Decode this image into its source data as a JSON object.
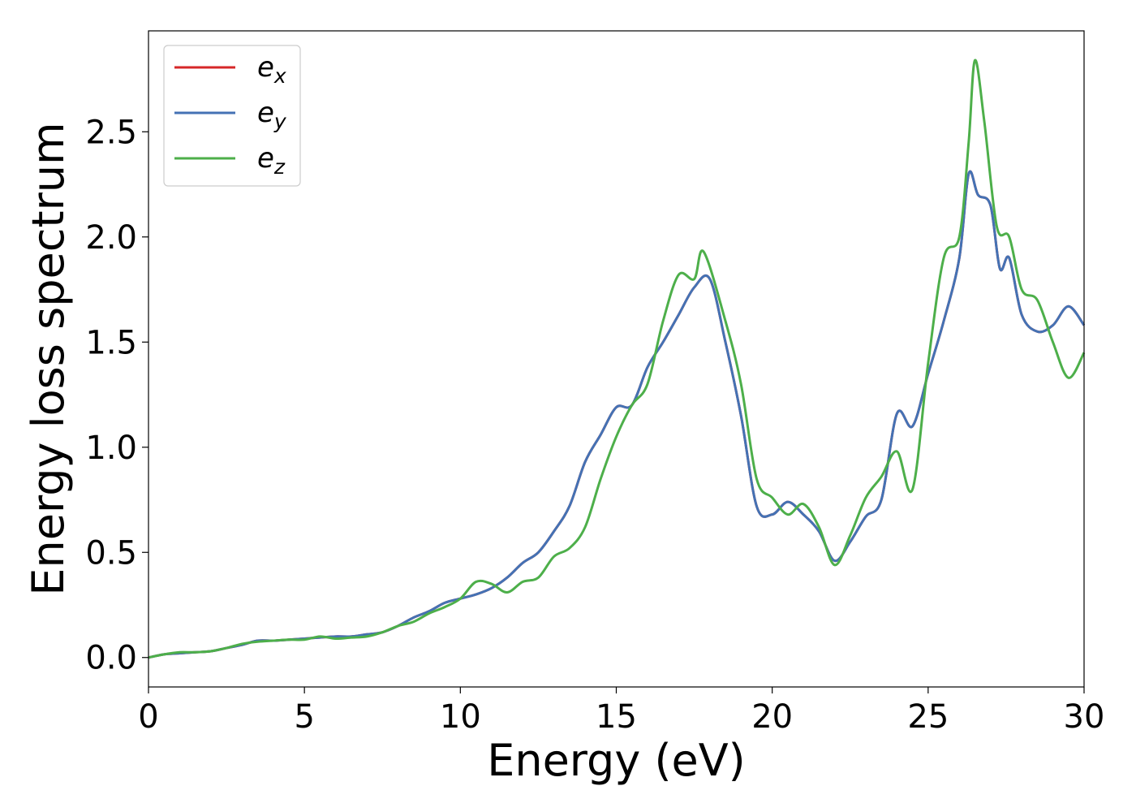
{
  "chart_data": {
    "type": "line",
    "title": "",
    "xlabel": "Energy (eV)",
    "ylabel": "Energy loss spectrum",
    "xlim": [
      0,
      30
    ],
    "ylim": [
      -0.14,
      2.98
    ],
    "xticks": [
      0,
      5,
      10,
      15,
      20,
      25,
      30
    ],
    "yticks": [
      0.0,
      0.5,
      1.0,
      1.5,
      2.0,
      2.5
    ],
    "xtick_labels": [
      "0",
      "5",
      "10",
      "15",
      "20",
      "25",
      "30"
    ],
    "ytick_labels": [
      "0.0",
      "0.5",
      "1.0",
      "1.5",
      "2.0",
      "2.5"
    ],
    "grid": false,
    "legend": "top-left",
    "series": [
      {
        "name": "e_x",
        "legend_base": "e",
        "legend_sub": "x",
        "color": "#d62728",
        "x": [
          0,
          0.5,
          1,
          1.5,
          2,
          2.5,
          3,
          3.5,
          4,
          4.5,
          5,
          5.5,
          6,
          6.5,
          7,
          7.5,
          8,
          8.5,
          9,
          9.5,
          10,
          10.5,
          11,
          11.5,
          12,
          12.5,
          13,
          13.5,
          14,
          14.5,
          15,
          15.5,
          16,
          16.5,
          17,
          17.5,
          18,
          18.5,
          19,
          19.5,
          20,
          20.5,
          21,
          21.5,
          22,
          22.5,
          23,
          23.5,
          24,
          24.5,
          25,
          25.5,
          26,
          26.3,
          26.6,
          27,
          27.3,
          27.6,
          28,
          28.5,
          29,
          29.5,
          30
        ],
        "y": [
          0.0,
          0.015,
          0.02,
          0.025,
          0.03,
          0.045,
          0.06,
          0.08,
          0.08,
          0.085,
          0.09,
          0.095,
          0.1,
          0.1,
          0.11,
          0.12,
          0.15,
          0.19,
          0.22,
          0.26,
          0.28,
          0.3,
          0.33,
          0.38,
          0.45,
          0.5,
          0.6,
          0.72,
          0.93,
          1.06,
          1.19,
          1.2,
          1.38,
          1.5,
          1.63,
          1.76,
          1.8,
          1.5,
          1.15,
          0.72,
          0.68,
          0.74,
          0.68,
          0.6,
          0.46,
          0.55,
          0.67,
          0.75,
          1.16,
          1.1,
          1.35,
          1.6,
          1.9,
          2.3,
          2.2,
          2.15,
          1.85,
          1.9,
          1.63,
          1.55,
          1.58,
          1.67,
          1.58
        ]
      },
      {
        "name": "e_y",
        "legend_base": "e",
        "legend_sub": "y",
        "color": "#4472b4",
        "x": [
          0,
          0.5,
          1,
          1.5,
          2,
          2.5,
          3,
          3.5,
          4,
          4.5,
          5,
          5.5,
          6,
          6.5,
          7,
          7.5,
          8,
          8.5,
          9,
          9.5,
          10,
          10.5,
          11,
          11.5,
          12,
          12.5,
          13,
          13.5,
          14,
          14.5,
          15,
          15.5,
          16,
          16.5,
          17,
          17.5,
          18,
          18.5,
          19,
          19.5,
          20,
          20.5,
          21,
          21.5,
          22,
          22.5,
          23,
          23.5,
          24,
          24.5,
          25,
          25.5,
          26,
          26.3,
          26.6,
          27,
          27.3,
          27.6,
          28,
          28.5,
          29,
          29.5,
          30
        ],
        "y": [
          0.0,
          0.015,
          0.02,
          0.025,
          0.03,
          0.045,
          0.06,
          0.08,
          0.08,
          0.085,
          0.09,
          0.095,
          0.1,
          0.1,
          0.11,
          0.12,
          0.15,
          0.19,
          0.22,
          0.26,
          0.28,
          0.3,
          0.33,
          0.38,
          0.45,
          0.5,
          0.6,
          0.72,
          0.93,
          1.06,
          1.19,
          1.2,
          1.38,
          1.5,
          1.63,
          1.76,
          1.8,
          1.5,
          1.15,
          0.72,
          0.68,
          0.74,
          0.68,
          0.6,
          0.46,
          0.55,
          0.67,
          0.75,
          1.16,
          1.1,
          1.35,
          1.6,
          1.9,
          2.3,
          2.2,
          2.15,
          1.85,
          1.9,
          1.63,
          1.55,
          1.58,
          1.67,
          1.58
        ]
      },
      {
        "name": "e_z",
        "legend_base": "e",
        "legend_sub": "z",
        "color": "#4daf4a",
        "x": [
          0,
          0.5,
          1,
          1.5,
          2,
          2.5,
          3,
          3.5,
          4,
          4.5,
          5,
          5.5,
          6,
          6.5,
          7,
          7.5,
          8,
          8.5,
          9,
          9.5,
          10,
          10.5,
          11,
          11.5,
          12,
          12.5,
          13,
          13.5,
          14,
          14.5,
          15,
          15.5,
          16,
          16.5,
          17,
          17.5,
          17.8,
          18.5,
          19,
          19.5,
          20,
          20.5,
          21,
          21.5,
          22,
          22.5,
          23,
          23.5,
          24,
          24.5,
          25,
          25.5,
          26,
          26.3,
          26.5,
          26.8,
          27.2,
          27.6,
          28,
          28.5,
          29,
          29.5,
          30
        ],
        "y": [
          0.0,
          0.015,
          0.025,
          0.025,
          0.03,
          0.045,
          0.065,
          0.075,
          0.08,
          0.085,
          0.085,
          0.1,
          0.09,
          0.095,
          0.1,
          0.12,
          0.15,
          0.17,
          0.21,
          0.24,
          0.28,
          0.36,
          0.35,
          0.31,
          0.36,
          0.38,
          0.48,
          0.52,
          0.62,
          0.85,
          1.05,
          1.2,
          1.3,
          1.6,
          1.82,
          1.8,
          1.93,
          1.6,
          1.3,
          0.85,
          0.76,
          0.68,
          0.73,
          0.62,
          0.44,
          0.58,
          0.76,
          0.86,
          0.98,
          0.8,
          1.4,
          1.9,
          2.0,
          2.45,
          2.84,
          2.55,
          2.05,
          2.0,
          1.75,
          1.7,
          1.5,
          1.33,
          1.45
        ]
      }
    ]
  }
}
